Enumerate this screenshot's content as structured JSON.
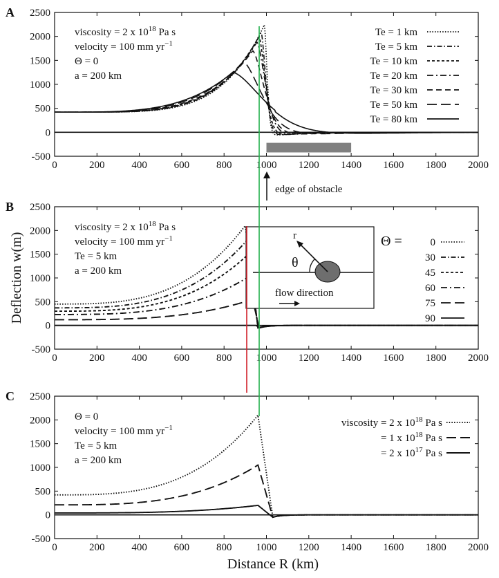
{
  "chart_data": [
    {
      "type": "line",
      "panel": "A",
      "xlim": [
        0,
        2000
      ],
      "ylim": [
        -500,
        2500
      ],
      "xticks": [
        "0",
        "200",
        "400",
        "600",
        "800",
        "1000",
        "1200",
        "1400",
        "1600",
        "1800",
        "2000"
      ],
      "yticks": [
        "2500",
        "2000",
        "1500",
        "1000",
        "500",
        "0",
        "-500"
      ],
      "annotations": [
        "viscosity = 2 x 10",
        "18",
        "  Pa s",
        "velocity = 100 mm yr",
        "−1",
        "Θ = 0",
        "a = 200 km"
      ],
      "obstacle": {
        "x_start": 1000,
        "x_end": 1400
      },
      "obstacle_label": "edge of obstacle",
      "series": [
        {
          "name": "Te = 1 km",
          "style": "dotted",
          "peak_x": 990,
          "peak_y": 2240,
          "y0": 420,
          "decay": 330,
          "min_y": -60,
          "tail": 18
        },
        {
          "name": "Te = 5 km",
          "style": "dashdot",
          "peak_x": 975,
          "peak_y": 2080,
          "y0": 420,
          "decay": 335,
          "min_y": -60,
          "tail": 30
        },
        {
          "name": "Te = 10 km",
          "style": "shortdash",
          "peak_x": 965,
          "peak_y": 2000,
          "y0": 420,
          "decay": 340,
          "min_y": -55,
          "tail": 40
        },
        {
          "name": "Te = 20 km",
          "style": "dashdotsparse",
          "peak_x": 955,
          "peak_y": 1880,
          "y0": 420,
          "decay": 345,
          "min_y": -50,
          "tail": 55
        },
        {
          "name": "Te = 30 km",
          "style": "dash",
          "peak_x": 935,
          "peak_y": 1700,
          "y0": 420,
          "decay": 350,
          "min_y": -45,
          "tail": 75
        },
        {
          "name": "Te = 50 km",
          "style": "longdash",
          "peak_x": 890,
          "peak_y": 1470,
          "y0": 420,
          "decay": 360,
          "min_y": -40,
          "tail": 120
        },
        {
          "name": "Te = 80 km",
          "style": "solid",
          "peak_x": 840,
          "peak_y": 1250,
          "y0": 420,
          "decay": 380,
          "min_y": -30,
          "tail": 200
        }
      ]
    },
    {
      "type": "line",
      "panel": "B",
      "xlim": [
        0,
        2000
      ],
      "ylim": [
        -500,
        2500
      ],
      "ylabel": "Deflection  w(m)",
      "xticks": [
        "0",
        "200",
        "400",
        "600",
        "800",
        "1000",
        "1200",
        "1400",
        "1600",
        "1800",
        "2000"
      ],
      "yticks": [
        "2500",
        "2000",
        "1500",
        "1000",
        "500",
        "0",
        "-500"
      ],
      "annotations": [
        "viscosity = 2 x 10",
        "18",
        "  Pa s",
        "velocity = 100 mm yr",
        "−1",
        "Te = 5 km",
        "a = 200 km"
      ],
      "inset": {
        "r_label": "r",
        "theta_label": "θ",
        "flow_label": "flow direction"
      },
      "legend_prefix": "Θ =",
      "series": [
        {
          "name": "0",
          "style": "dotted",
          "peak_x": 900,
          "peak_y": 2100,
          "y0": 450,
          "decay": 300,
          "drop_x": 960
        },
        {
          "name": "30",
          "style": "dashdot",
          "peak_x": 910,
          "peak_y": 1800,
          "y0": 370,
          "decay": 300,
          "drop_x": 960
        },
        {
          "name": "45",
          "style": "shortdash",
          "peak_x": 915,
          "peak_y": 1500,
          "y0": 300,
          "decay": 300,
          "drop_x": 960
        },
        {
          "name": "60",
          "style": "dashdotsparse",
          "peak_x": 925,
          "peak_y": 1050,
          "y0": 230,
          "decay": 300,
          "drop_x": 962
        },
        {
          "name": "75",
          "style": "longdash",
          "peak_x": 935,
          "peak_y": 550,
          "y0": 120,
          "decay": 300,
          "drop_x": 965
        },
        {
          "name": "90",
          "style": "solid",
          "peak_x": 950,
          "peak_y": 0,
          "y0": 0,
          "decay": 300,
          "drop_x": 970
        }
      ]
    },
    {
      "type": "line",
      "panel": "C",
      "xlim": [
        0,
        2000
      ],
      "ylim": [
        -500,
        2500
      ],
      "xlabel": "Distance R (km)",
      "xticks": [
        "0",
        "200",
        "400",
        "600",
        "800",
        "1000",
        "1200",
        "1400",
        "1600",
        "1800",
        "2000"
      ],
      "yticks": [
        "2500",
        "2000",
        "1500",
        "1000",
        "500",
        "0",
        "-500"
      ],
      "annotations": [
        "Θ = 0",
        "velocity = 100 mm yr",
        "−1",
        "Te = 5 km",
        "a = 200 km"
      ],
      "series": [
        {
          "name": "viscosity = 2 x 10",
          "sup": "18",
          "unit": "  Pa s",
          "style": "dotted",
          "peak_x": 960,
          "peak_y": 2100,
          "y0": 420,
          "decay": 300,
          "drop_x": 1030
        },
        {
          "name": "= 1 x 10",
          "sup": "18",
          "unit": "  Pa s",
          "style": "longdash",
          "peak_x": 960,
          "peak_y": 1050,
          "y0": 210,
          "decay": 300,
          "drop_x": 1030
        },
        {
          "name": "= 2 x 10",
          "sup": "17",
          "unit": "  Pa s",
          "style": "solid",
          "peak_x": 960,
          "peak_y": 200,
          "y0": 40,
          "decay": 300,
          "drop_x": 1030
        }
      ]
    }
  ],
  "colors": {
    "green_line": "#22b14c",
    "red_line": "#d0202a",
    "obstacle": "#808080",
    "ink": "#111111"
  }
}
